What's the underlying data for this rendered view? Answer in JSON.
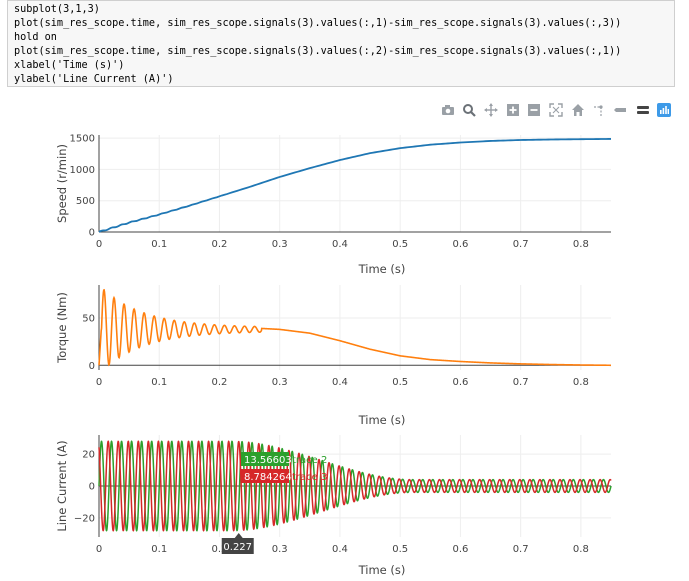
{
  "code": {
    "lines": [
      "subplot(3,1,3)",
      "plot(sim_res_scope.time, sim_res_scope.signals(3).values(:,1)-sim_res_scope.signals(3).values(:,3))",
      "hold on",
      "plot(sim_res_scope.time, sim_res_scope.signals(3).values(:,2)-sim_res_scope.signals(3).values(:,1))",
      "xlabel('Time (s)')",
      "ylabel('Line Current (A)')"
    ]
  },
  "modebar": {
    "buttons": [
      {
        "name": "camera-icon"
      },
      {
        "name": "zoom-icon"
      },
      {
        "name": "pan-icon"
      },
      {
        "name": "zoom-in-icon"
      },
      {
        "name": "zoom-out-icon"
      },
      {
        "name": "autoscale-icon"
      },
      {
        "name": "home-icon"
      },
      {
        "name": "spike-lines-icon"
      },
      {
        "name": "hover-closest-icon"
      },
      {
        "name": "hover-compare-icon"
      },
      {
        "name": "plotly-logo-icon"
      }
    ]
  },
  "colors": {
    "speed": "#1f77b4",
    "torque": "#ff7f0e",
    "trace2": "#2ca02c",
    "trace3": "#d62728"
  },
  "chart_data": [
    {
      "type": "line",
      "ylabel": "Speed (r/min)",
      "xlabel": "Time (s)",
      "xlim": [
        0,
        0.85
      ],
      "ylim": [
        0,
        1550
      ],
      "xticks": [
        "0",
        "0.1",
        "0.2",
        "0.3",
        "0.4",
        "0.5",
        "0.6",
        "0.7",
        "0.8"
      ],
      "yticks": [
        "0",
        "500",
        "1000",
        "1500"
      ],
      "series": [
        {
          "x": [
            0,
            0.02,
            0.05,
            0.1,
            0.15,
            0.2,
            0.25,
            0.3,
            0.35,
            0.4,
            0.45,
            0.5,
            0.55,
            0.6,
            0.65,
            0.7,
            0.75,
            0.8,
            0.85
          ],
          "values": [
            0,
            60,
            150,
            280,
            420,
            570,
            720,
            880,
            1020,
            1150,
            1260,
            1340,
            1395,
            1430,
            1455,
            1470,
            1478,
            1483,
            1487
          ]
        }
      ]
    },
    {
      "type": "line",
      "ylabel": "Torque (Nm)",
      "xlabel": "Time (s)",
      "xlim": [
        0,
        0.85
      ],
      "ylim": [
        -5,
        85
      ],
      "xticks": [
        "0",
        "0.1",
        "0.2",
        "0.3",
        "0.4",
        "0.5",
        "0.6",
        "0.7",
        "0.8"
      ],
      "yticks": [
        "0",
        "50"
      ],
      "series": [
        {
          "x": [
            0.27,
            0.3,
            0.35,
            0.4,
            0.45,
            0.5,
            0.55,
            0.6,
            0.65,
            0.7,
            0.75,
            0.8,
            0.85
          ],
          "values": [
            39,
            38,
            34,
            26,
            17,
            10,
            6,
            4,
            2.5,
            1.5,
            0.8,
            0.3,
            0
          ]
        }
      ]
    },
    {
      "type": "line",
      "ylabel": "Line Current (A)",
      "xlabel": "Time (s)",
      "xlim": [
        0,
        0.85
      ],
      "ylim": [
        -32,
        32
      ],
      "xticks": [
        "0",
        "0.1",
        "0.2",
        "0.3",
        "0.4",
        "0.5",
        "0.6",
        "0.7",
        "0.8"
      ],
      "yticks": [
        "−20",
        "0",
        "20"
      ],
      "series": [
        {
          "name": "trace 2",
          "frequency_hz": 60,
          "amplitude_start": 28,
          "amplitude_end": 4
        },
        {
          "name": "trace 3",
          "frequency_hz": 60,
          "amplitude_start": 28,
          "amplitude_end": 4
        }
      ],
      "hover": {
        "x_label": "0.227",
        "trace2_value": "13.56603",
        "trace2_name": "trace 2",
        "trace3_value": "8.784264",
        "trace3_name": "trace 3"
      }
    }
  ]
}
